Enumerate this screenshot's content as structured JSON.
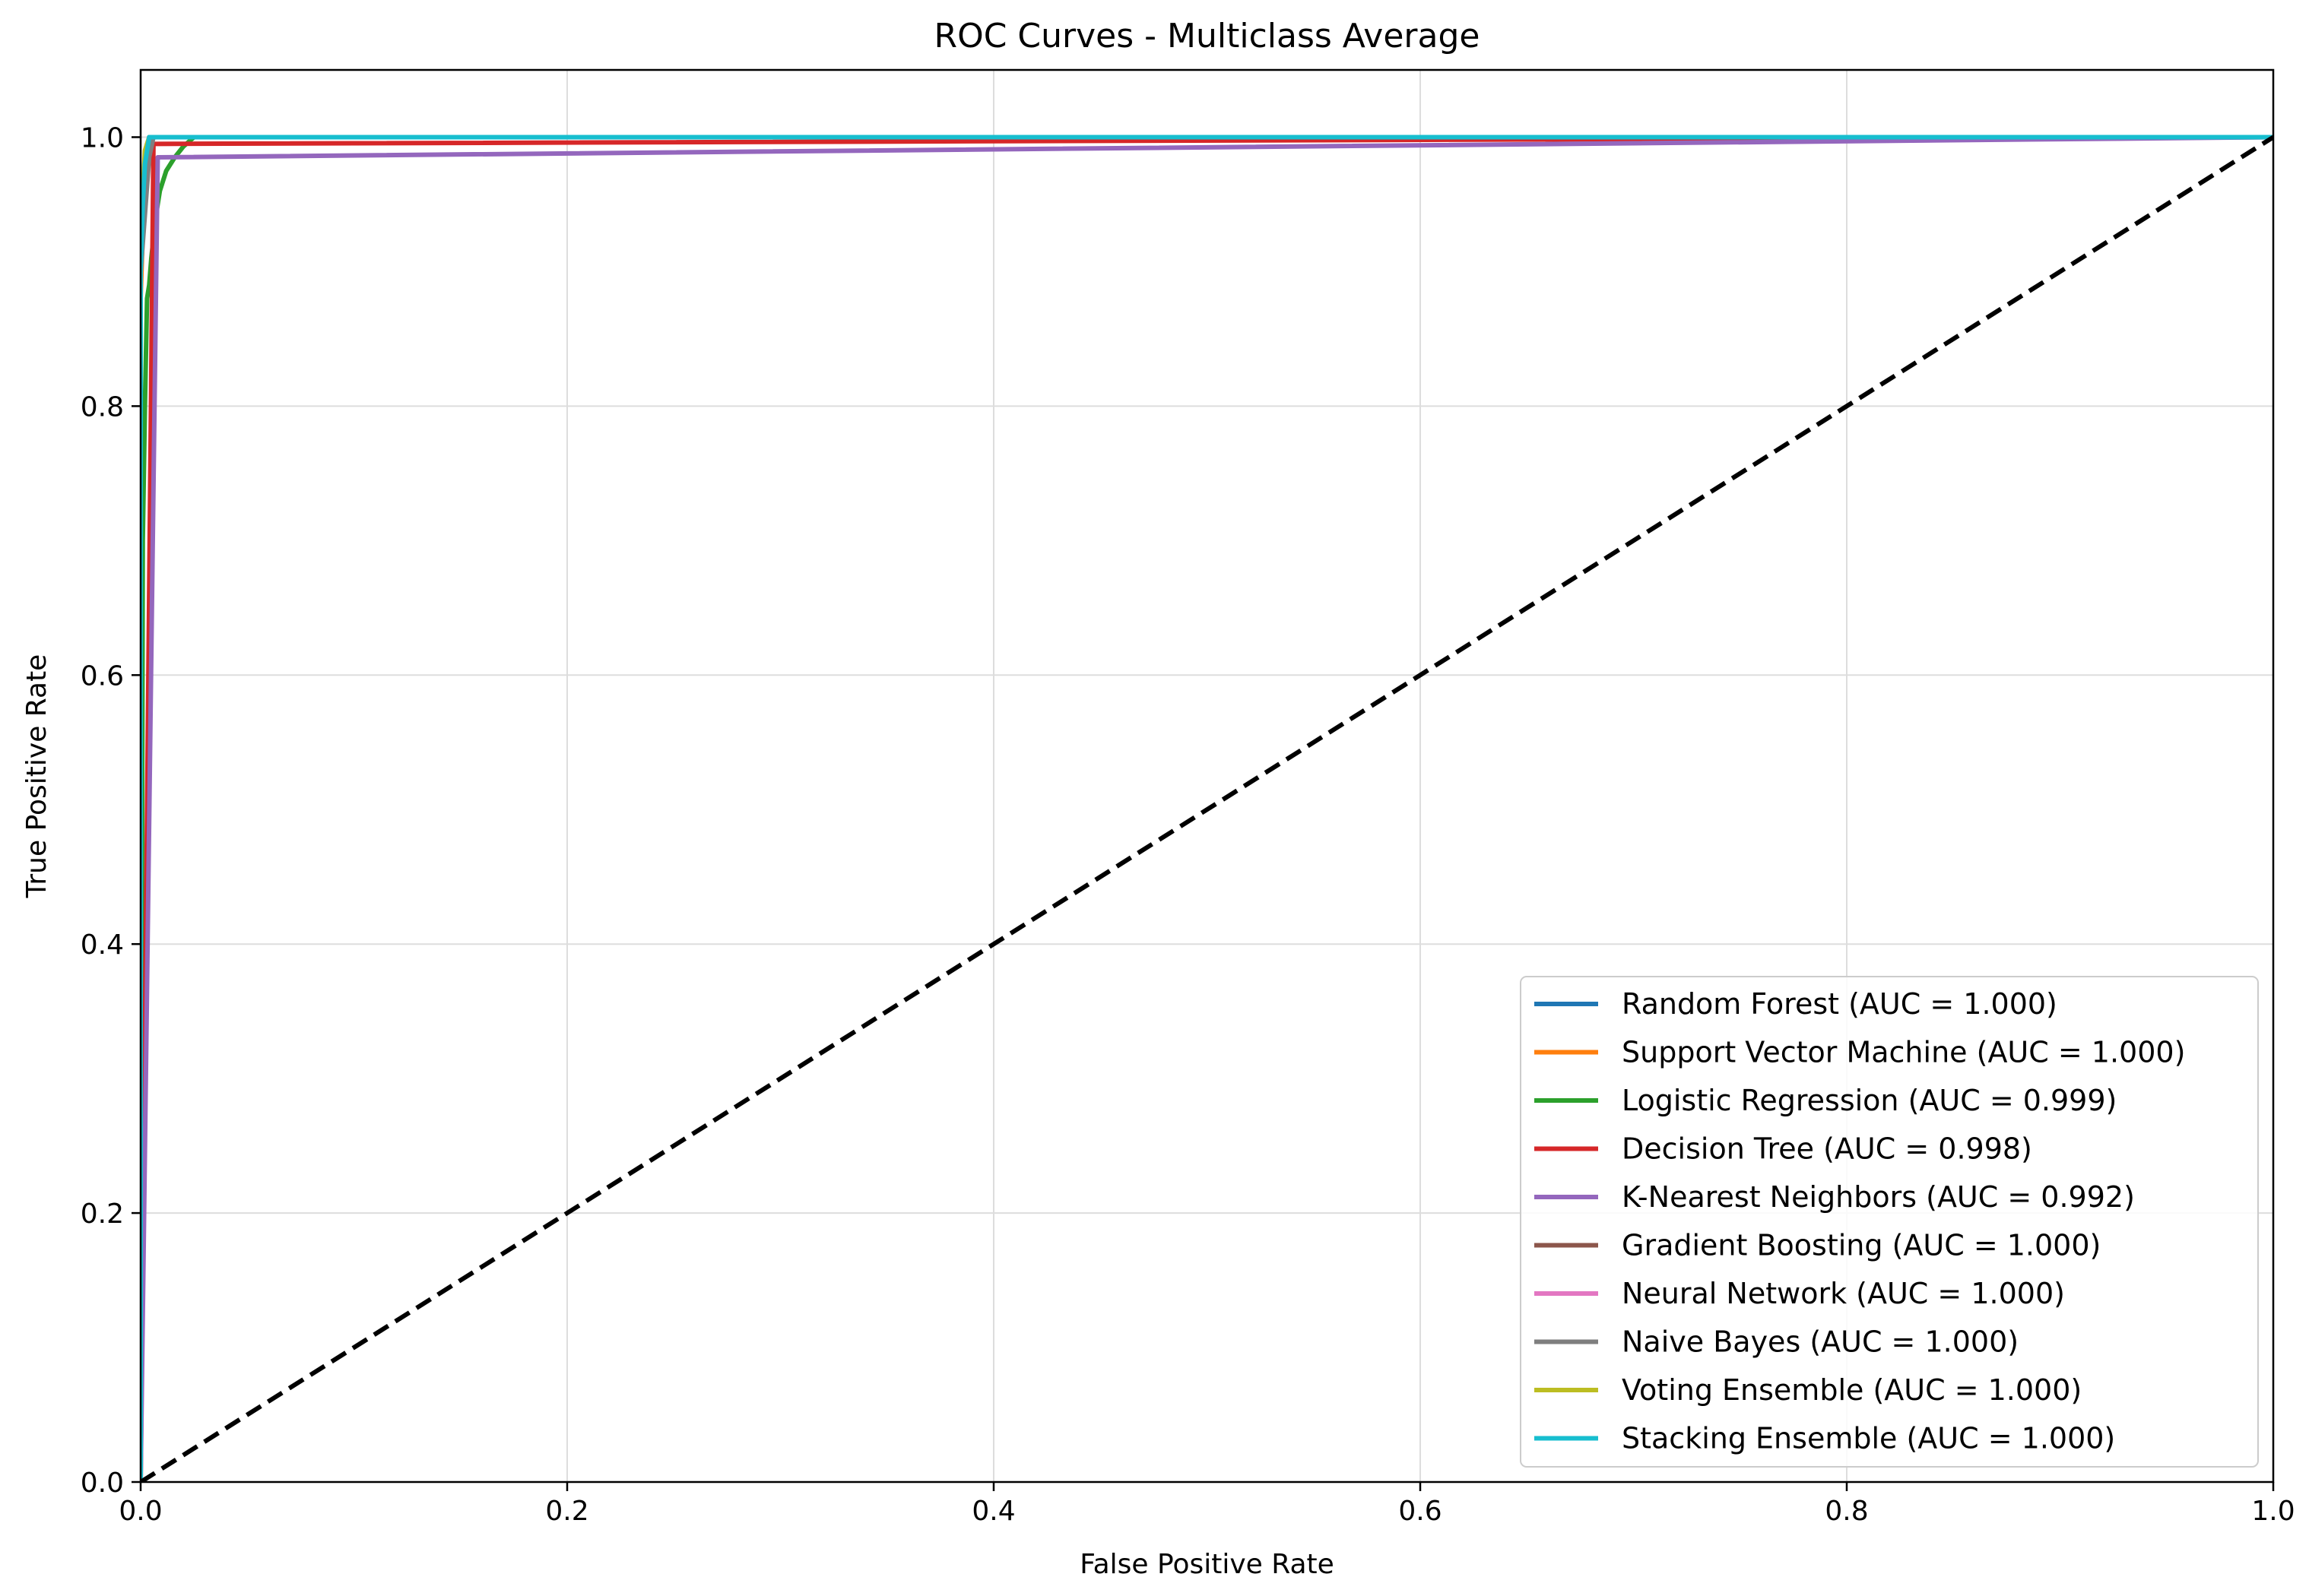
{
  "chart_data": {
    "type": "line",
    "title": "ROC Curves - Multiclass Average",
    "xlabel": "False Positive Rate",
    "ylabel": "True Positive Rate",
    "xlim": [
      0.0,
      1.0
    ],
    "ylim": [
      0.0,
      1.05
    ],
    "x_ticks": [
      "0.0",
      "0.2",
      "0.4",
      "0.6",
      "0.8",
      "1.0"
    ],
    "y_ticks": [
      "0.0",
      "0.2",
      "0.4",
      "0.6",
      "0.8",
      "1.0"
    ],
    "grid": true,
    "legend_position": "lower-right",
    "series": [
      {
        "name": "Random Forest (AUC = 1.000)",
        "color": "#1f77b4",
        "x": [
          0,
          0,
          0.002,
          0.004,
          1.0
        ],
        "y": [
          0,
          0.9,
          0.985,
          1.0,
          1.0
        ]
      },
      {
        "name": "Support Vector Machine (AUC = 1.000)",
        "color": "#ff7f0e",
        "x": [
          0,
          0,
          0.002,
          0.005,
          1.0
        ],
        "y": [
          0,
          0.88,
          0.98,
          1.0,
          1.0
        ]
      },
      {
        "name": "Logistic Regression (AUC = 0.999)",
        "color": "#2ca02c",
        "x": [
          0,
          0.001,
          0.002,
          0.003,
          0.004,
          0.005,
          0.007,
          0.009,
          0.012,
          0.016,
          0.02,
          0.025,
          1.0
        ],
        "y": [
          0,
          0.7,
          0.8,
          0.88,
          0.89,
          0.91,
          0.94,
          0.96,
          0.975,
          0.985,
          0.993,
          1.0,
          1.0
        ]
      },
      {
        "name": "Decision Tree (AUC = 0.998)",
        "color": "#d62728",
        "x": [
          0,
          0.006,
          1.0
        ],
        "y": [
          0,
          0.995,
          1.0
        ]
      },
      {
        "name": "K-Nearest Neighbors (AUC = 0.992)",
        "color": "#9467bd",
        "x": [
          0,
          0.008,
          1.0
        ],
        "y": [
          0,
          0.985,
          1.0
        ]
      },
      {
        "name": "Gradient Boosting (AUC = 1.000)",
        "color": "#8c564b",
        "x": [
          0,
          0,
          0.003,
          0.006,
          1.0
        ],
        "y": [
          0,
          0.93,
          0.99,
          1.0,
          1.0
        ]
      },
      {
        "name": "Neural Network (AUC = 1.000)",
        "color": "#e377c2",
        "x": [
          0,
          0,
          0.003,
          0.005,
          1.0
        ],
        "y": [
          0,
          0.95,
          0.995,
          1.0,
          1.0
        ]
      },
      {
        "name": "Naive Bayes (AUC = 1.000)",
        "color": "#7f7f7f",
        "x": [
          0,
          0,
          0.004,
          0.006,
          1.0
        ],
        "y": [
          0,
          0.9,
          0.985,
          1.0,
          1.0
        ]
      },
      {
        "name": "Voting Ensemble (AUC = 1.000)",
        "color": "#bcbd22",
        "x": [
          0,
          0,
          0.002,
          0.004,
          1.0
        ],
        "y": [
          0,
          0.93,
          0.99,
          1.0,
          1.0
        ]
      },
      {
        "name": "Stacking Ensemble (AUC = 1.000)",
        "color": "#17becf",
        "x": [
          0,
          0,
          0.001,
          0.002,
          0.004,
          1.0
        ],
        "y": [
          0,
          0.9,
          0.95,
          0.98,
          1.0,
          1.0
        ]
      }
    ],
    "reference_line": {
      "x": [
        0,
        1
      ],
      "y": [
        0,
        1
      ],
      "color": "#000000",
      "style": "dashed"
    }
  }
}
